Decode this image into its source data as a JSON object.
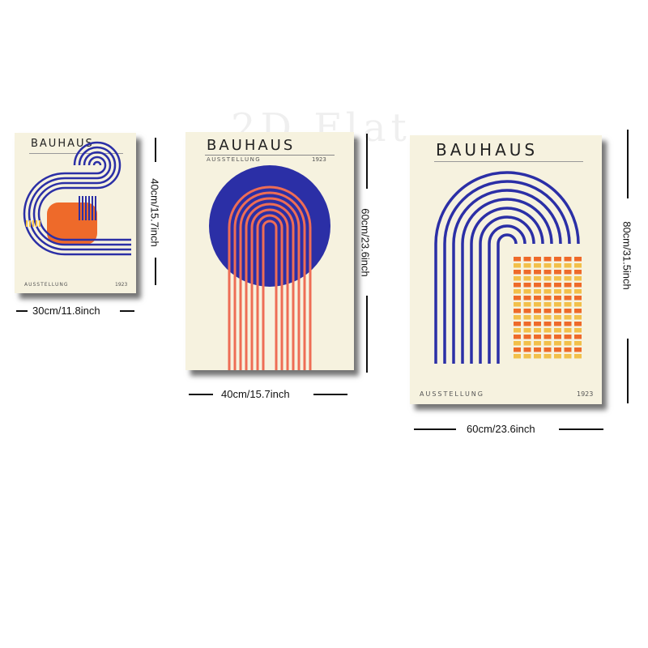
{
  "watermark": "2D Flat",
  "posters": [
    {
      "title": "BAUHAUS",
      "subtitle": "AUSSTELLUNG",
      "year": "1923",
      "width_label": "30cm/11.8inch",
      "height_label": "40cm/15.7inch"
    },
    {
      "title": "BAUHAUS",
      "subtitle": "AUSSTELLUNG",
      "year": "1923",
      "width_label": "40cm/15.7inch",
      "height_label": "60cm/23.6inch"
    },
    {
      "title": "BAUHAUS",
      "subtitle": "AUSSTELLUNG",
      "year": "1923",
      "width_label": "60cm/23.6inch",
      "height_label": "80cm/31.5inch"
    }
  ],
  "colors": {
    "paper": "#f6f2df",
    "blue": "#2b2fa6",
    "orange": "#ee6a2a",
    "yellow": "#f2c04a",
    "coral": "#ee6d55"
  }
}
